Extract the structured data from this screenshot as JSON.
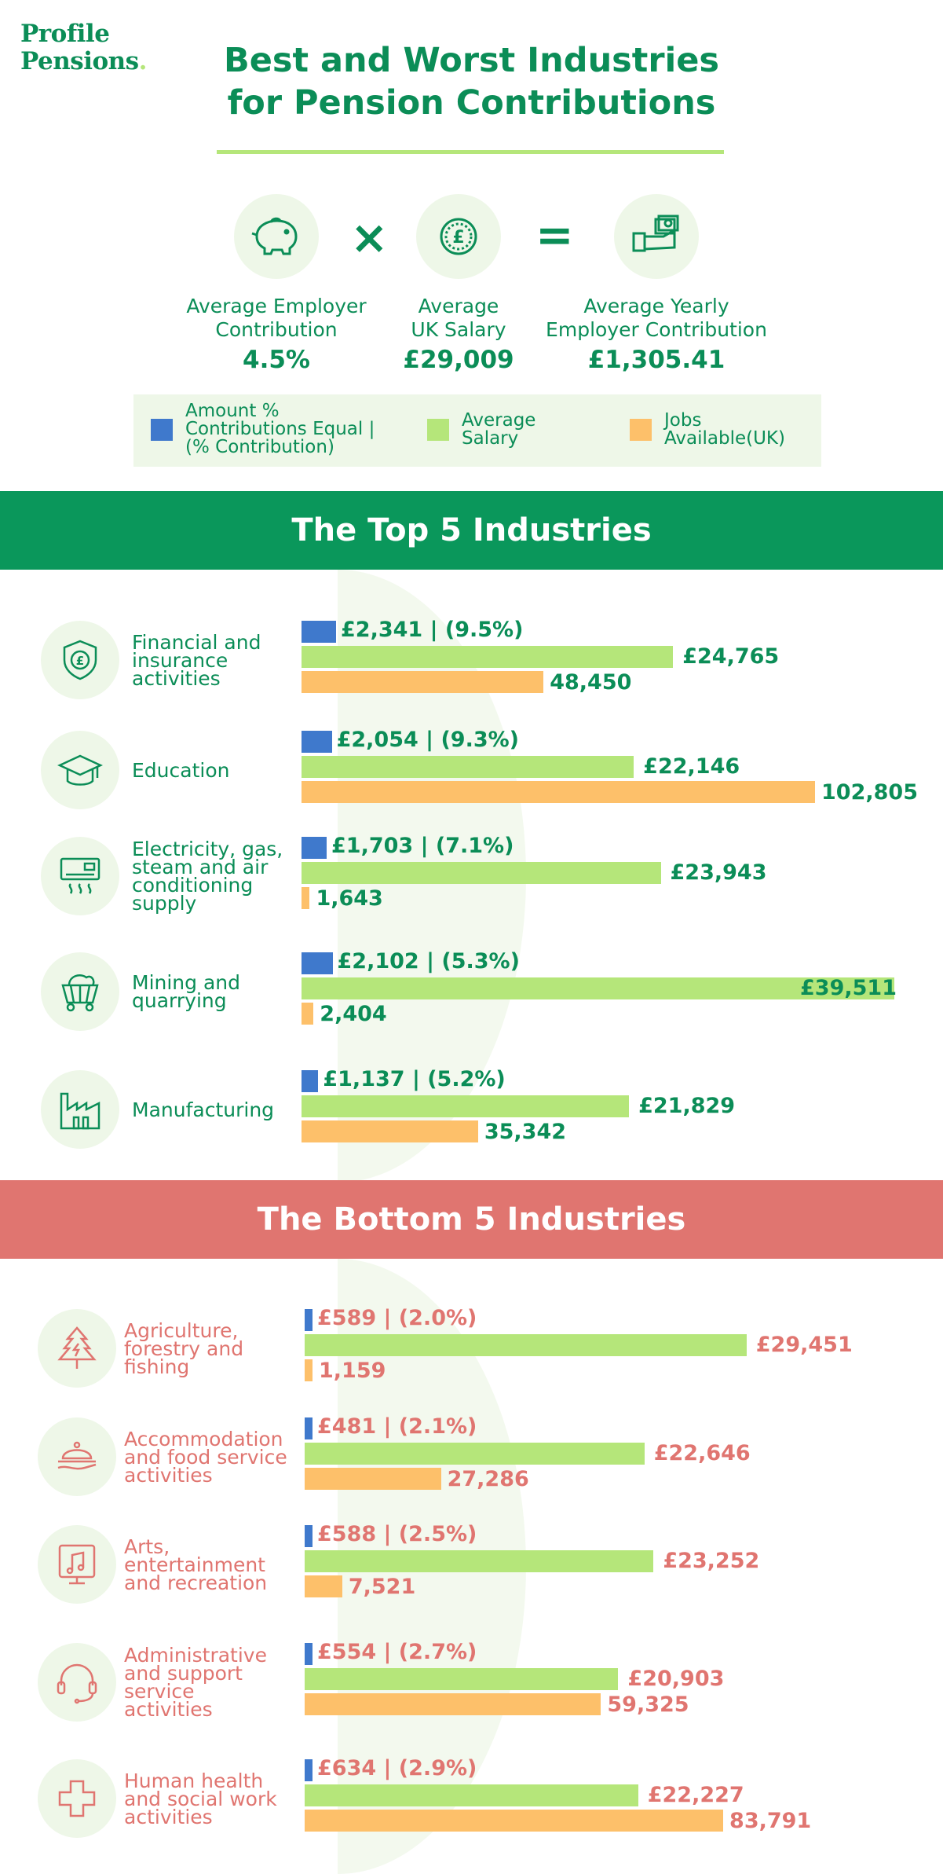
{
  "brand": {
    "line1": "Profile",
    "line2": "Pensions",
    "dot": "."
  },
  "title": {
    "line1": "Best and Worst Industries",
    "line2": "for Pension Contributions"
  },
  "equation": {
    "icons": [
      "piggy-bank-icon",
      "pound-coin-icon",
      "cash-hand-icon"
    ],
    "times": "×",
    "equals": "=",
    "items": [
      {
        "label1": "Average Employer",
        "label2": "Contribution",
        "value": "4.5%"
      },
      {
        "label1": "Average",
        "label2": "UK Salary",
        "value": "£29,009"
      },
      {
        "label1": "Average Yearly",
        "label2": "Employer Contribution",
        "value": "£1,305.41"
      }
    ]
  },
  "legend": [
    {
      "lines": [
        "Amount %",
        "Contributions Equal |",
        "(% Contribution)"
      ],
      "color": "#3f79cc"
    },
    {
      "lines": [
        "Average",
        "Salary"
      ],
      "color": "#b5e67a"
    },
    {
      "lines": [
        "Jobs",
        "Available(UK)"
      ],
      "color": "#fdc06a"
    }
  ],
  "colors": {
    "green": "#0b8d57",
    "red": "#e07570",
    "contribution": "#3f79cc",
    "salary": "#b5e67a",
    "jobs": "#fdc06a"
  },
  "sections": {
    "top": "The Top 5 Industries",
    "bottom": "The Bottom 5 Industries"
  },
  "chart_data": [
    {
      "type": "bar",
      "title": "The Top 5 Industries",
      "categories": [
        "Financial and insurance activities",
        "Education",
        "Electricity, gas, steam and air conditioning supply",
        "Mining and quarrying",
        "Manufacturing"
      ],
      "series": [
        {
          "name": "Amount % Contributions Equal | (% Contribution)",
          "values": [
            2341,
            2054,
            1703,
            2102,
            1137
          ],
          "labels": [
            "£2,341 | (9.5%)",
            "£2,054 | (9.3%)",
            "£1,703 | (7.1%)",
            "£2,102 | (5.3%)",
            "£1,137 | (5.2%)"
          ]
        },
        {
          "name": "Average Salary",
          "values": [
            24765,
            22146,
            23943,
            39511,
            21829
          ],
          "labels": [
            "£24,765",
            "£22,146",
            "£23,943",
            "£39,511",
            "£21,829"
          ]
        },
        {
          "name": "Jobs Available(UK)",
          "values": [
            48450,
            102805,
            1643,
            2404,
            35342
          ],
          "labels": [
            "48,450",
            "102,805",
            "1,643",
            "2,404",
            "35,342"
          ]
        }
      ]
    },
    {
      "type": "bar",
      "title": "The Bottom 5 Industries",
      "categories": [
        "Agriculture, forestry and fishing",
        "Accommodation and food service activities",
        "Arts, entertainment and recreation",
        "Administrative and support service activities",
        "Human health and social work activities"
      ],
      "series": [
        {
          "name": "Amount % Contributions Equal | (% Contribution)",
          "values": [
            589,
            481,
            588,
            554,
            634
          ],
          "labels": [
            "£589 | (2.0%)",
            "£481 | (2.1%)",
            "£588 | (2.5%)",
            "£554 | (2.7%)",
            "£634 | (2.9%)"
          ]
        },
        {
          "name": "Average Salary",
          "values": [
            29451,
            22646,
            23252,
            20903,
            22227
          ],
          "labels": [
            "£29,451",
            "£22,646",
            "£23,252",
            "£20,903",
            "£22,227"
          ]
        },
        {
          "name": "Jobs Available(UK)",
          "values": [
            1159,
            27286,
            7521,
            59325,
            83791
          ],
          "labels": [
            "1,159",
            "27,286",
            "7,521",
            "59,325",
            "83,791"
          ]
        }
      ]
    }
  ],
  "industries": {
    "top": [
      {
        "name_lines": [
          "Financial and",
          "insurance",
          "activities"
        ],
        "icon": "shield-pound-icon"
      },
      {
        "name_lines": [
          "Education"
        ],
        "icon": "graduation-cap-icon"
      },
      {
        "name_lines": [
          "Electricity, gas,",
          "steam and air",
          "conditioning",
          "supply"
        ],
        "icon": "air-conditioner-icon"
      },
      {
        "name_lines": [
          "Mining and",
          "quarrying"
        ],
        "icon": "mine-cart-icon"
      },
      {
        "name_lines": [
          "Manufacturing"
        ],
        "icon": "factory-icon"
      }
    ],
    "bottom": [
      {
        "name_lines": [
          "Agriculture,",
          "forestry and",
          "fishing"
        ],
        "icon": "tree-icon"
      },
      {
        "name_lines": [
          "Accommodation",
          "and food service",
          "activities"
        ],
        "icon": "food-cloche-icon"
      },
      {
        "name_lines": [
          "Arts,",
          "entertainment",
          "and recreation"
        ],
        "icon": "music-screen-icon"
      },
      {
        "name_lines": [
          "Administrative",
          "and support",
          "service",
          "activities"
        ],
        "icon": "headset-icon"
      },
      {
        "name_lines": [
          "Human health",
          "and social work",
          "activities"
        ],
        "icon": "medical-cross-icon"
      }
    ]
  }
}
